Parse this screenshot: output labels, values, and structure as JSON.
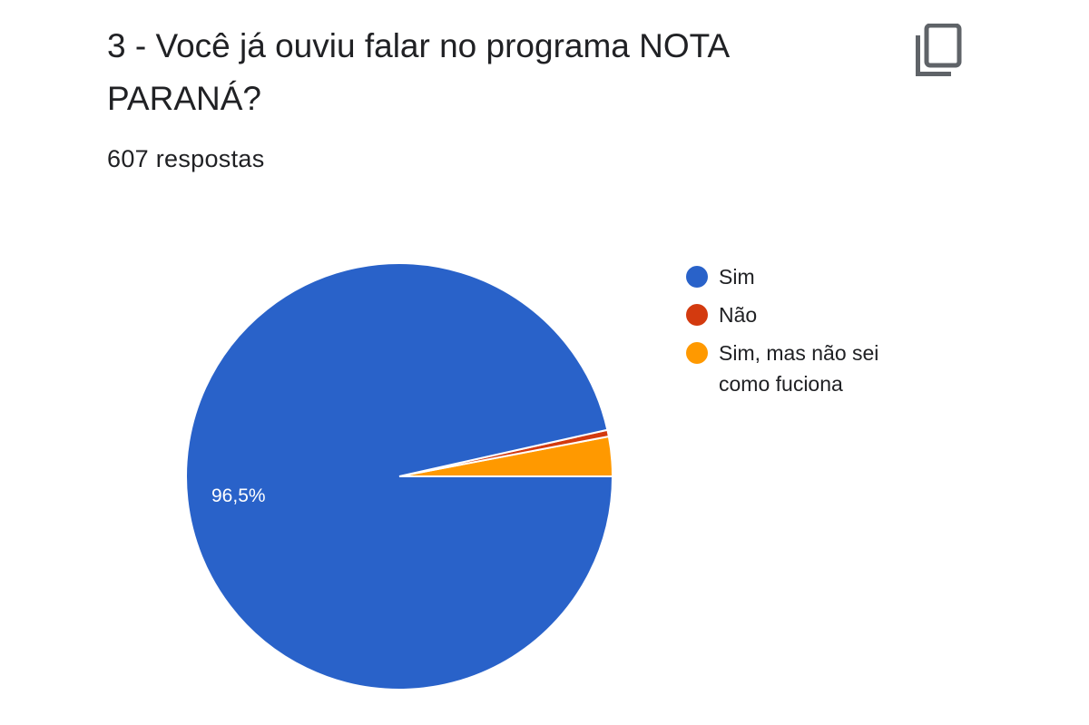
{
  "header": {
    "title": "3 - Você já ouviu falar no programa NOTA PARANÁ?",
    "response_count": "607 respostas",
    "copy_icon": "copy-icon"
  },
  "legend": [
    {
      "label": "Sim",
      "color": "#2962C9"
    },
    {
      "label": "Não",
      "color": "#D33A0F"
    },
    {
      "label": "Sim, mas não sei como fuciona",
      "color": "#FF9900"
    }
  ],
  "slice_labels": {
    "sim": "96,5%"
  },
  "chart_data": {
    "type": "pie",
    "title": "3 - Você já ouviu falar no programa NOTA PARANÁ?",
    "subtitle": "607 respostas",
    "categories": [
      "Sim",
      "Não",
      "Sim, mas não sei como fuciona"
    ],
    "values": [
      96.5,
      0.5,
      3.0
    ],
    "unit": "%",
    "colors": [
      "#2962C9",
      "#D33A0F",
      "#FF9900"
    ],
    "data_labels": [
      "96,5%",
      "",
      ""
    ],
    "legend_position": "right"
  }
}
